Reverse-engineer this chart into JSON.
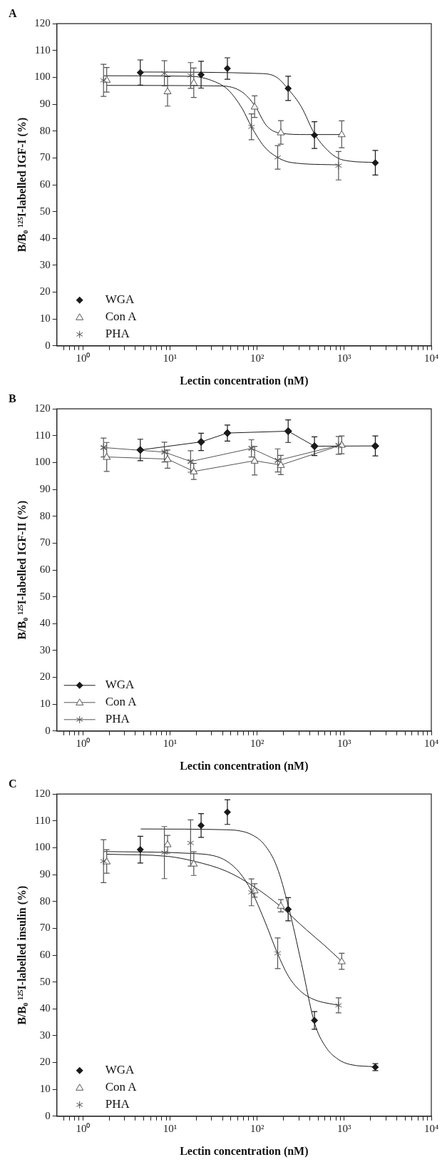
{
  "chart_data": [
    {
      "type": "scatter",
      "title": "A",
      "xlabel": "Lectin concentration (nM)",
      "ylabel": "B/B₀ ¹²⁵I-labelled IGF-I (%)",
      "log": "x",
      "legend": "bottom left",
      "grid": false,
      "xlim": [
        0.5,
        10000
      ],
      "xticks": [
        {
          "value": 0.6,
          "label": null
        },
        {
          "value": 0.7,
          "label": null
        },
        {
          "value": 0.8,
          "label": null
        },
        {
          "value": 0.9,
          "label": null
        },
        {
          "value": 1,
          "label": "10⁰"
        },
        {
          "value": 2,
          "label": null
        },
        {
          "value": 3,
          "label": null
        },
        {
          "value": 4,
          "label": null
        },
        {
          "value": 5,
          "label": null
        },
        {
          "value": 6,
          "label": null
        },
        {
          "value": 7,
          "label": null
        },
        {
          "value": 8,
          "label": null
        },
        {
          "value": 9,
          "label": null
        },
        {
          "value": 10,
          "label": "10¹"
        },
        {
          "value": 20,
          "label": null
        },
        {
          "value": 30,
          "label": null
        },
        {
          "value": 40,
          "label": null
        },
        {
          "value": 50,
          "label": null
        },
        {
          "value": 60,
          "label": null
        },
        {
          "value": 70,
          "label": null
        },
        {
          "value": 80,
          "label": null
        },
        {
          "value": 90,
          "label": null
        },
        {
          "value": 100,
          "label": "10²"
        },
        {
          "value": 200,
          "label": null
        },
        {
          "value": 300,
          "label": null
        },
        {
          "value": 400,
          "label": null
        },
        {
          "value": 500,
          "label": null
        },
        {
          "value": 600,
          "label": null
        },
        {
          "value": 700,
          "label": null
        },
        {
          "value": 800,
          "label": null
        },
        {
          "value": 900,
          "label": null
        },
        {
          "value": 1000,
          "label": "10³"
        },
        {
          "value": 2000,
          "label": null
        },
        {
          "value": 3000,
          "label": null
        },
        {
          "value": 4000,
          "label": null
        },
        {
          "value": 5000,
          "label": null
        },
        {
          "value": 6000,
          "label": null
        },
        {
          "value": 7000,
          "label": null
        },
        {
          "value": 8000,
          "label": null
        },
        {
          "value": 9000,
          "label": null
        },
        {
          "value": 10000,
          "label": "10⁴"
        }
      ],
      "ylim": [
        0,
        120
      ],
      "yticks": [
        0,
        10,
        20,
        30,
        40,
        50,
        60,
        70,
        80,
        90,
        100,
        110,
        120
      ],
      "series": [
        {
          "name": "WGA",
          "type": "scatter",
          "color": "#1a1a1a",
          "marker": "diamond",
          "x": [
            4.55,
            22.7,
            45.5,
            227,
            455,
            2275
          ],
          "values": [
            101.8,
            101,
            103.3,
            95.9,
            78.5,
            68.2
          ],
          "errors": [
            4.7,
            5,
            4,
            4.5,
            5,
            4.6
          ]
        },
        {
          "name": "Con A",
          "type": "scatter",
          "color": "#555555",
          "marker": "triangle",
          "x": [
            1.87,
            9.35,
            18.7,
            93.5,
            187,
            935
          ],
          "values": [
            99.1,
            94.8,
            98,
            89.1,
            79.5,
            78.8
          ],
          "errors": [
            4.6,
            5.5,
            5.5,
            4,
            4.4,
            5
          ]
        },
        {
          "name": "PHA",
          "type": "scatter",
          "color": "#555555",
          "marker": "cross",
          "x": [
            1.72,
            8.6,
            17.2,
            86,
            172,
            860
          ],
          "values": [
            98.9,
            101.5,
            100.7,
            81.6,
            70.2,
            67.1
          ],
          "errors": [
            6,
            4.7,
            4.8,
            4.8,
            4.4,
            5.3
          ]
        },
        {
          "type": "line",
          "color": "#1a1a1a",
          "marker": "none",
          "x": [
            4.6,
            116,
            168,
            229,
            322,
            455,
            635,
            860,
            1160,
            2276
          ],
          "values": [
            102,
            101.4,
            100,
            95.5,
            89,
            79,
            73,
            69.8,
            68.8,
            68.3
          ]
        },
        {
          "type": "line",
          "color": "#1a1a1a",
          "marker": "none",
          "x": [
            1.87,
            39,
            67.5,
            94.6,
            128,
            186,
            366,
            935
          ],
          "values": [
            97,
            96.8,
            94.5,
            89.3,
            82,
            79.2,
            78.7,
            78.7
          ]
        },
        {
          "type": "line",
          "color": "#1a1a1a",
          "marker": "none",
          "x": [
            1.72,
            17.3,
            32,
            46.5,
            67.5,
            86,
            120,
            171,
            244,
            860
          ],
          "values": [
            100.6,
            100.4,
            98.5,
            95.3,
            88.3,
            81.6,
            74.3,
            70.2,
            68.3,
            67.4
          ]
        }
      ]
    },
    {
      "type": "line",
      "title": "B",
      "xlabel": "Lectin concentration (nM)",
      "ylabel": "B/B₀ ¹²⁵I-labelled IGF-II (%)",
      "log": "x",
      "legend": "bottom left",
      "grid": false,
      "xlim": [
        0.5,
        10000
      ],
      "xticks": [
        {
          "value": 0.6,
          "label": null
        },
        {
          "value": 0.7,
          "label": null
        },
        {
          "value": 0.8,
          "label": null
        },
        {
          "value": 0.9,
          "label": null
        },
        {
          "value": 1,
          "label": "10⁰"
        },
        {
          "value": 2,
          "label": null
        },
        {
          "value": 3,
          "label": null
        },
        {
          "value": 4,
          "label": null
        },
        {
          "value": 5,
          "label": null
        },
        {
          "value": 6,
          "label": null
        },
        {
          "value": 7,
          "label": null
        },
        {
          "value": 8,
          "label": null
        },
        {
          "value": 9,
          "label": null
        },
        {
          "value": 10,
          "label": "10¹"
        },
        {
          "value": 20,
          "label": null
        },
        {
          "value": 30,
          "label": null
        },
        {
          "value": 40,
          "label": null
        },
        {
          "value": 50,
          "label": null
        },
        {
          "value": 60,
          "label": null
        },
        {
          "value": 70,
          "label": null
        },
        {
          "value": 80,
          "label": null
        },
        {
          "value": 90,
          "label": null
        },
        {
          "value": 100,
          "label": "10²"
        },
        {
          "value": 200,
          "label": null
        },
        {
          "value": 300,
          "label": null
        },
        {
          "value": 400,
          "label": null
        },
        {
          "value": 500,
          "label": null
        },
        {
          "value": 600,
          "label": null
        },
        {
          "value": 700,
          "label": null
        },
        {
          "value": 800,
          "label": null
        },
        {
          "value": 900,
          "label": null
        },
        {
          "value": 1000,
          "label": "10³"
        },
        {
          "value": 2000,
          "label": null
        },
        {
          "value": 3000,
          "label": null
        },
        {
          "value": 4000,
          "label": null
        },
        {
          "value": 5000,
          "label": null
        },
        {
          "value": 6000,
          "label": null
        },
        {
          "value": 7000,
          "label": null
        },
        {
          "value": 8000,
          "label": null
        },
        {
          "value": 9000,
          "label": null
        },
        {
          "value": 10000,
          "label": "10⁴"
        }
      ],
      "ylim": [
        0,
        120
      ],
      "yticks": [
        0,
        10,
        20,
        30,
        40,
        50,
        60,
        70,
        80,
        90,
        100,
        110,
        120
      ],
      "series": [
        {
          "name": "WGA",
          "color": "#1a1a1a",
          "marker": "diamond",
          "x": [
            4.55,
            22.7,
            45.5,
            227,
            455,
            2275
          ],
          "values": [
            104.7,
            107.7,
            111,
            111.7,
            106.1,
            106.2
          ],
          "errors": [
            4,
            3.2,
            3,
            4.2,
            3.5,
            3.7
          ]
        },
        {
          "name": "Con A",
          "color": "#555555",
          "marker": "triangle",
          "x": [
            1.87,
            9.35,
            18.7,
            93.5,
            187,
            935
          ],
          "values": [
            102.1,
            101.3,
            96.7,
            100.7,
            99.1,
            106.6
          ],
          "errors": [
            5.4,
            3.4,
            3,
            5.3,
            3.6,
            3.3
          ]
        },
        {
          "name": "PHA",
          "color": "#555555",
          "marker": "cross",
          "x": [
            1.72,
            8.6,
            17.2,
            86,
            172,
            860
          ],
          "values": [
            105.6,
            103.9,
            100.4,
            105.3,
            100.8,
            106.4
          ],
          "errors": [
            3.5,
            3.7,
            4,
            3.2,
            4.3,
            3.3
          ]
        }
      ]
    },
    {
      "type": "scatter",
      "title": "C",
      "xlabel": "Lectin concentration (nM)",
      "ylabel": "B/B₀ ¹²⁵I-labelled insulin (%)",
      "log": "x",
      "legend": "bottom left",
      "grid": false,
      "xlim": [
        0.5,
        10000
      ],
      "xticks": [
        {
          "value": 0.6,
          "label": null
        },
        {
          "value": 0.7,
          "label": null
        },
        {
          "value": 0.8,
          "label": null
        },
        {
          "value": 0.9,
          "label": null
        },
        {
          "value": 1,
          "label": "10⁰"
        },
        {
          "value": 2,
          "label": null
        },
        {
          "value": 3,
          "label": null
        },
        {
          "value": 4,
          "label": null
        },
        {
          "value": 5,
          "label": null
        },
        {
          "value": 6,
          "label": null
        },
        {
          "value": 7,
          "label": null
        },
        {
          "value": 8,
          "label": null
        },
        {
          "value": 9,
          "label": null
        },
        {
          "value": 10,
          "label": "10¹"
        },
        {
          "value": 20,
          "label": null
        },
        {
          "value": 30,
          "label": null
        },
        {
          "value": 40,
          "label": null
        },
        {
          "value": 50,
          "label": null
        },
        {
          "value": 60,
          "label": null
        },
        {
          "value": 70,
          "label": null
        },
        {
          "value": 80,
          "label": null
        },
        {
          "value": 90,
          "label": null
        },
        {
          "value": 100,
          "label": "10²"
        },
        {
          "value": 200,
          "label": null
        },
        {
          "value": 300,
          "label": null
        },
        {
          "value": 400,
          "label": null
        },
        {
          "value": 500,
          "label": null
        },
        {
          "value": 600,
          "label": null
        },
        {
          "value": 700,
          "label": null
        },
        {
          "value": 800,
          "label": null
        },
        {
          "value": 900,
          "label": null
        },
        {
          "value": 1000,
          "label": "10³"
        },
        {
          "value": 2000,
          "label": null
        },
        {
          "value": 3000,
          "label": null
        },
        {
          "value": 4000,
          "label": null
        },
        {
          "value": 5000,
          "label": null
        },
        {
          "value": 6000,
          "label": null
        },
        {
          "value": 7000,
          "label": null
        },
        {
          "value": 8000,
          "label": null
        },
        {
          "value": 9000,
          "label": null
        },
        {
          "value": 10000,
          "label": "10⁴"
        }
      ],
      "ylim": [
        0,
        120
      ],
      "yticks": [
        0,
        10,
        20,
        30,
        40,
        50,
        60,
        70,
        80,
        90,
        100,
        110,
        120
      ],
      "series": [
        {
          "name": "WGA",
          "type": "scatter",
          "color": "#1a1a1a",
          "marker": "diamond",
          "x": [
            4.55,
            22.7,
            45.5,
            227,
            455,
            2275
          ],
          "values": [
            99.3,
            108.3,
            113.3,
            77.1,
            35.7,
            18.3
          ],
          "errors": [
            5,
            4.4,
            4.6,
            4.3,
            3.3,
            1.3
          ]
        },
        {
          "name": "Con A",
          "type": "scatter",
          "color": "#555555",
          "marker": "triangle",
          "x": [
            1.87,
            9.35,
            18.7,
            93.5,
            187,
            935
          ],
          "values": [
            94.9,
            101.3,
            94.1,
            84.1,
            78.4,
            57.7
          ],
          "errors": [
            4.4,
            3.3,
            4.4,
            2.5,
            2.3,
            3
          ]
        },
        {
          "name": "PHA",
          "type": "scatter",
          "color": "#555555",
          "marker": "cross",
          "x": [
            1.72,
            8.6,
            17.2,
            86,
            172,
            860
          ],
          "values": [
            95,
            98.2,
            101.8,
            83.4,
            60.7,
            41.3
          ],
          "errors": [
            8,
            9.7,
            8.6,
            5,
            5.7,
            2.8
          ]
        },
        {
          "type": "line",
          "color": "#1a1a1a",
          "marker": "none",
          "x": [
            4.6,
            45.5,
            63,
            85,
            120,
            168,
            229,
            322,
            455,
            610,
            860,
            1160,
            2276
          ],
          "values": [
            107,
            106.7,
            106.3,
            105,
            101.3,
            93,
            78,
            57,
            34.8,
            25.9,
            21.1,
            19.3,
            18.4
          ]
        },
        {
          "type": "line",
          "color": "#1a1a1a",
          "marker": "none",
          "x": [
            1.87,
            9.4,
            18.8,
            44.8,
            93,
            186,
            366,
            590,
            935
          ],
          "values": [
            97.6,
            96.8,
            95,
            91.2,
            85.4,
            78.1,
            69.5,
            63.7,
            57.7
          ]
        },
        {
          "type": "line",
          "color": "#1a1a1a",
          "marker": "none",
          "x": [
            1.72,
            17.3,
            32,
            44.8,
            63,
            86,
            120,
            171,
            229,
            322,
            455,
            860
          ],
          "values": [
            98.6,
            97.9,
            97,
            95,
            90.7,
            83.9,
            73.3,
            60.7,
            52.1,
            46.3,
            43.4,
            41.3
          ]
        }
      ]
    }
  ]
}
